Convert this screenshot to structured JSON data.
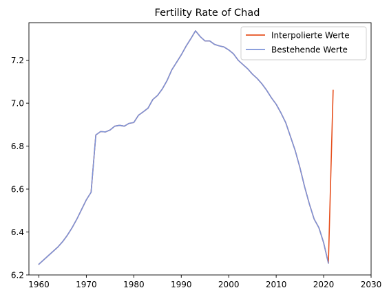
{
  "chart_data": {
    "type": "line",
    "title": "Fertility Rate of Chad",
    "xlabel": "",
    "ylabel": "",
    "xlim": [
      1957.9,
      2030
    ],
    "ylim": [
      6.2,
      7.375
    ],
    "xticks": [
      1960,
      1970,
      1980,
      1990,
      2000,
      2010,
      2020,
      2030
    ],
    "yticks": [
      6.2,
      6.4,
      6.6,
      6.8,
      7.0,
      7.2
    ],
    "ytick_labels": [
      "6.2",
      "6.4",
      "6.6",
      "6.8",
      "7.0",
      "7.2"
    ],
    "grid": false,
    "legend_position": "top-right",
    "series": [
      {
        "name": "Interpolierte Werte",
        "color": "#e6501e",
        "x": [
          1960,
          1961,
          1962,
          1963,
          1964,
          1965,
          1966,
          1967,
          1968,
          1969,
          1970,
          1971,
          1972,
          1973,
          1974,
          1975,
          1976,
          1977,
          1978,
          1979,
          1980,
          1981,
          1982,
          1983,
          1984,
          1985,
          1986,
          1987,
          1988,
          1989,
          1990,
          1991,
          1992,
          1993,
          1994,
          1995,
          1996,
          1997,
          1998,
          1999,
          2000,
          2001,
          2002,
          2003,
          2004,
          2005,
          2006,
          2007,
          2008,
          2009,
          2010,
          2011,
          2012,
          2013,
          2014,
          2015,
          2016,
          2017,
          2018,
          2019,
          2020,
          2021,
          2022
        ],
        "y": [
          6.25,
          6.27,
          6.29,
          6.31,
          6.33,
          6.355,
          6.385,
          6.42,
          6.46,
          6.505,
          6.55,
          6.585,
          6.852,
          6.868,
          6.866,
          6.875,
          6.893,
          6.897,
          6.893,
          6.906,
          6.91,
          6.944,
          6.96,
          6.977,
          7.017,
          7.036,
          7.066,
          7.105,
          7.155,
          7.19,
          7.225,
          7.265,
          7.3,
          7.337,
          7.31,
          7.29,
          7.29,
          7.274,
          7.267,
          7.262,
          7.248,
          7.23,
          7.2,
          7.18,
          7.16,
          7.135,
          7.115,
          7.09,
          7.06,
          7.025,
          6.995,
          6.955,
          6.91,
          6.845,
          6.78,
          6.7,
          6.61,
          6.53,
          6.46,
          6.42,
          6.35,
          6.255,
          7.06
        ]
      },
      {
        "name": "Bestehende Werte",
        "color": "#7b93d8",
        "x": [
          1960,
          1961,
          1962,
          1963,
          1964,
          1965,
          1966,
          1967,
          1968,
          1969,
          1970,
          1971,
          1972,
          1973,
          1974,
          1975,
          1976,
          1977,
          1978,
          1979,
          1980,
          1981,
          1982,
          1983,
          1984,
          1985,
          1986,
          1987,
          1988,
          1989,
          1990,
          1991,
          1992,
          1993,
          1994,
          1995,
          1996,
          1997,
          1998,
          1999,
          2000,
          2001,
          2002,
          2003,
          2004,
          2005,
          2006,
          2007,
          2008,
          2009,
          2010,
          2011,
          2012,
          2013,
          2014,
          2015,
          2016,
          2017,
          2018,
          2019,
          2020,
          2021
        ],
        "y": [
          6.25,
          6.27,
          6.29,
          6.31,
          6.33,
          6.355,
          6.385,
          6.42,
          6.46,
          6.505,
          6.55,
          6.585,
          6.852,
          6.868,
          6.866,
          6.875,
          6.893,
          6.897,
          6.893,
          6.906,
          6.91,
          6.944,
          6.96,
          6.977,
          7.017,
          7.036,
          7.066,
          7.105,
          7.155,
          7.19,
          7.225,
          7.265,
          7.3,
          7.337,
          7.31,
          7.29,
          7.29,
          7.274,
          7.267,
          7.262,
          7.248,
          7.23,
          7.2,
          7.18,
          7.16,
          7.135,
          7.115,
          7.09,
          7.06,
          7.025,
          6.995,
          6.955,
          6.91,
          6.845,
          6.78,
          6.7,
          6.61,
          6.53,
          6.46,
          6.42,
          6.35,
          6.255
        ]
      }
    ]
  }
}
